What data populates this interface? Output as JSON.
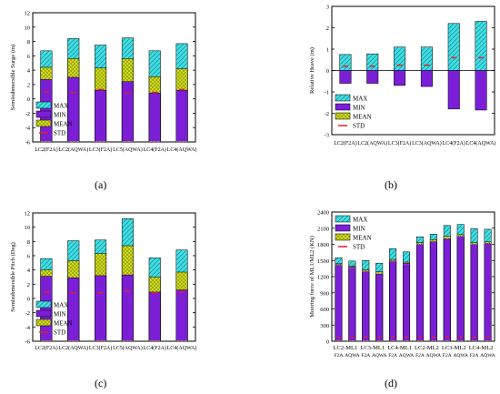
{
  "colors": {
    "max": "#3fe0e6",
    "min": "#7a1fd6",
    "mean": "#d8e21c",
    "std": "#e0202a",
    "frame": "#000000",
    "grid": "#d0d0d0"
  },
  "patterns": {
    "max": "diagonal-hatch",
    "min": "solid",
    "mean": "crosshatch"
  },
  "chart_data": [
    {
      "id": "a",
      "panel_label": "(a)",
      "type": "bar",
      "ylabel": "Semisubmersible Surge (m)",
      "ylim": [
        -6,
        12
      ],
      "yticks": [
        "-6",
        "-4",
        "-2",
        "0",
        "2",
        "4",
        "6",
        "8",
        "10",
        "12"
      ],
      "legend": [
        "MAX",
        "MIN",
        "MEAN",
        "STD"
      ],
      "legend_position": "bottom-left",
      "categories": [
        "LC2(F2A)",
        "LC2(AQWA)",
        "LC3(F2A)",
        "LC5(AQWA)",
        "LC4(F2A)",
        "LC4(AQWA)"
      ],
      "series": [
        {
          "name": "MAX",
          "values": [
            6.7,
            8.4,
            7.5,
            8.5,
            6.7,
            7.7
          ]
        },
        {
          "name": "MIN",
          "values": [
            2.7,
            3.0,
            1.2,
            2.4,
            0.8,
            1.2
          ]
        },
        {
          "name": "MEAN",
          "values": [
            4.4,
            5.6,
            4.3,
            5.6,
            3.1,
            4.2
          ]
        },
        {
          "name": "STD",
          "values": [
            1.0,
            0.9,
            1.3,
            0.8,
            0.9,
            1.3
          ]
        }
      ]
    },
    {
      "id": "b",
      "panel_label": "(b)",
      "type": "bar",
      "ylabel": "Relative Heave (m)",
      "ylim": [
        -3,
        3
      ],
      "yticks": [
        "-3",
        "-2",
        "-1",
        "0",
        "1",
        "2",
        "3"
      ],
      "legend": [
        "MAX",
        "MIN",
        "MEAN",
        "STD"
      ],
      "legend_position": "bottom-left",
      "categories": [
        "LC2(F2A)",
        "LC2(AQWA)",
        "LC3(F2A)",
        "LC3(AQWA)",
        "LC4(F2A)",
        "LC4(AQWA)"
      ],
      "series": [
        {
          "name": "MAX",
          "values": [
            0.75,
            0.78,
            1.1,
            1.1,
            2.2,
            2.3
          ]
        },
        {
          "name": "MIN",
          "values": [
            -0.6,
            -0.6,
            -0.7,
            -0.75,
            -1.8,
            -1.85
          ]
        },
        {
          "name": "MEAN",
          "values": [
            0.0,
            0.0,
            0.0,
            0.0,
            0.0,
            0.0
          ]
        },
        {
          "name": "STD",
          "values": [
            0.2,
            0.2,
            0.25,
            0.25,
            0.6,
            0.6
          ]
        }
      ]
    },
    {
      "id": "c",
      "panel_label": "(c)",
      "type": "bar",
      "ylabel": "Semisubmersible Pitch (Deg)",
      "ylim": [
        -6,
        12
      ],
      "yticks": [
        "-6",
        "-4",
        "-2",
        "0",
        "2",
        "4",
        "6",
        "8",
        "10",
        "12"
      ],
      "legend": [
        "MAX",
        "MIN",
        "MEAN",
        "STD"
      ],
      "legend_position": "bottom-left",
      "categories": [
        "LC2(F2A)",
        "LC2(AQWA)",
        "LC3(F2A)",
        "LC5(AQWA)",
        "LC4(F2A)",
        "LC4(AQWA)"
      ],
      "series": [
        {
          "name": "MAX",
          "values": [
            5.6,
            8.1,
            8.2,
            11.2,
            5.7,
            6.8
          ]
        },
        {
          "name": "MIN",
          "values": [
            3.1,
            2.9,
            3.2,
            3.3,
            0.9,
            1.2
          ]
        },
        {
          "name": "MEAN",
          "values": [
            4.0,
            5.3,
            6.3,
            7.4,
            3.0,
            3.7
          ]
        },
        {
          "name": "STD",
          "values": [
            0.9,
            0.8,
            0.8,
            1.0,
            0.8,
            0.9
          ]
        }
      ]
    },
    {
      "id": "d",
      "panel_label": "(d)",
      "type": "bar",
      "ylabel": "Mooring force of ML1/ML2 (KN)",
      "ylim": [
        0,
        2400
      ],
      "yticks": [
        "0",
        "300",
        "600",
        "900",
        "1200",
        "1500",
        "1800",
        "2100",
        "2400"
      ],
      "legend": [
        "MAX",
        "MIN",
        "MEAN",
        "STD"
      ],
      "legend_position": "top-left",
      "category_lines": [
        [
          "LC2-ML1",
          "LC3-ML1",
          "LC4-ML1",
          "LC2-ML2",
          "LC3-ML2",
          "LC4-ML2"
        ],
        [
          "F2A",
          "AQWA",
          "F2A",
          "AQWA",
          "F2A",
          "AQWA",
          "F2A",
          "AQWA",
          "F2A",
          "AQWA",
          "F2A",
          "AQWA"
        ]
      ],
      "series": [
        {
          "name": "MAX",
          "values": [
            1550,
            1490,
            1500,
            1450,
            1720,
            1660,
            1940,
            1990,
            2150,
            2170,
            2090,
            2080
          ]
        },
        {
          "name": "MIN",
          "values": [
            1420,
            1380,
            1300,
            1250,
            1490,
            1450,
            1800,
            1850,
            1900,
            1950,
            1800,
            1820
          ]
        },
        {
          "name": "MEAN",
          "values": [
            1440,
            1400,
            1330,
            1290,
            1520,
            1470,
            1830,
            1890,
            1950,
            1980,
            1830,
            1850
          ]
        },
        {
          "name": "STD",
          "values": [
            70,
            70,
            80,
            80,
            80,
            80,
            80,
            80,
            80,
            80,
            80,
            80
          ]
        }
      ]
    }
  ]
}
